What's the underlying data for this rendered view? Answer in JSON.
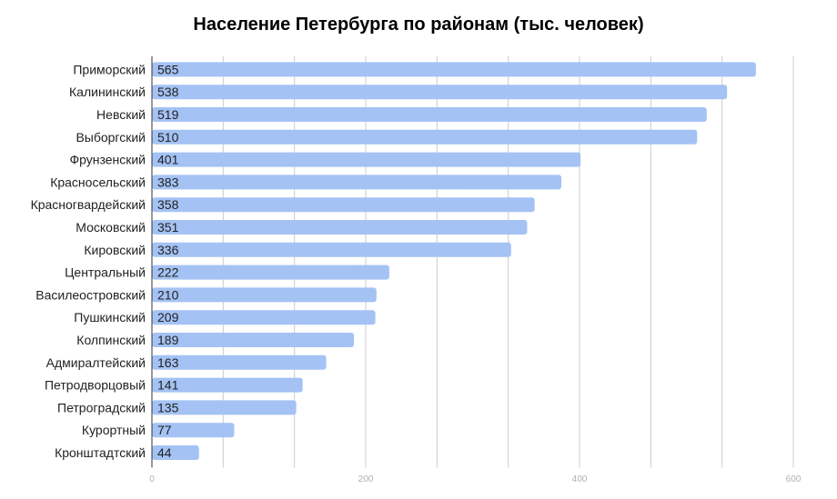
{
  "chart_data": {
    "type": "bar",
    "orientation": "horizontal",
    "title": "Население Петербурга по районам (тыс. человек)",
    "categories": [
      "Приморский",
      "Калининский",
      "Невский",
      "Выборгский",
      "Фрунзенский",
      "Красносельский",
      "Красногвардейский",
      "Московский",
      "Кировский",
      "Центральный",
      "Василеостровский",
      "Пушкинский",
      "Колпинский",
      "Адмиралтейский",
      "Петродворцовый",
      "Петроградский",
      "Курортный",
      "Кронштадтский"
    ],
    "values": [
      565,
      538,
      519,
      510,
      401,
      383,
      358,
      351,
      336,
      222,
      210,
      209,
      189,
      163,
      141,
      135,
      77,
      44
    ],
    "xlim": [
      0,
      600
    ],
    "xticks": [
      "0",
      "200",
      "400",
      "600"
    ],
    "grid": true,
    "data_labels": true,
    "bar_color": "#a4c2f4"
  }
}
